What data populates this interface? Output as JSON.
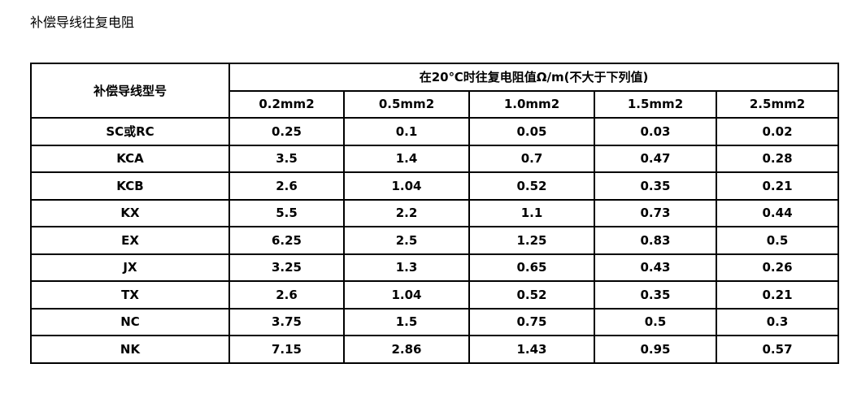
{
  "header": {
    "title": "补偿导线往复电阻"
  },
  "table": {
    "row_header": "补偿导线型号",
    "group_header": "在20℃时往复电阻值Ω/m(不大于下列值)",
    "columns": [
      "0.2mm2",
      "0.5mm2",
      "1.0mm2",
      "1.5mm2",
      "2.5mm2"
    ],
    "rows": [
      [
        "SC或RC",
        "0.25",
        "0.1",
        "0.05",
        "0.03",
        "0.02"
      ],
      [
        "KCA",
        "3.5",
        "1.4",
        "0.7",
        "0.47",
        "0.28"
      ],
      [
        "KCB",
        "2.6",
        "1.04",
        "0.52",
        "0.35",
        "0.21"
      ],
      [
        "KX",
        "5.5",
        "2.2",
        "1.1",
        "0.73",
        "0.44"
      ],
      [
        "EX",
        "6.25",
        "2.5",
        "1.25",
        "0.83",
        "0.5"
      ],
      [
        "JX",
        "3.25",
        "1.3",
        "0.65",
        "0.43",
        "0.26"
      ],
      [
        "TX",
        "2.6",
        "1.04",
        "0.52",
        "0.35",
        "0.21"
      ],
      [
        "NC",
        "3.75",
        "1.5",
        "0.75",
        "0.5",
        "0.3"
      ],
      [
        "NK",
        "7.15",
        "2.86",
        "1.43",
        "0.95",
        "0.57"
      ]
    ]
  }
}
